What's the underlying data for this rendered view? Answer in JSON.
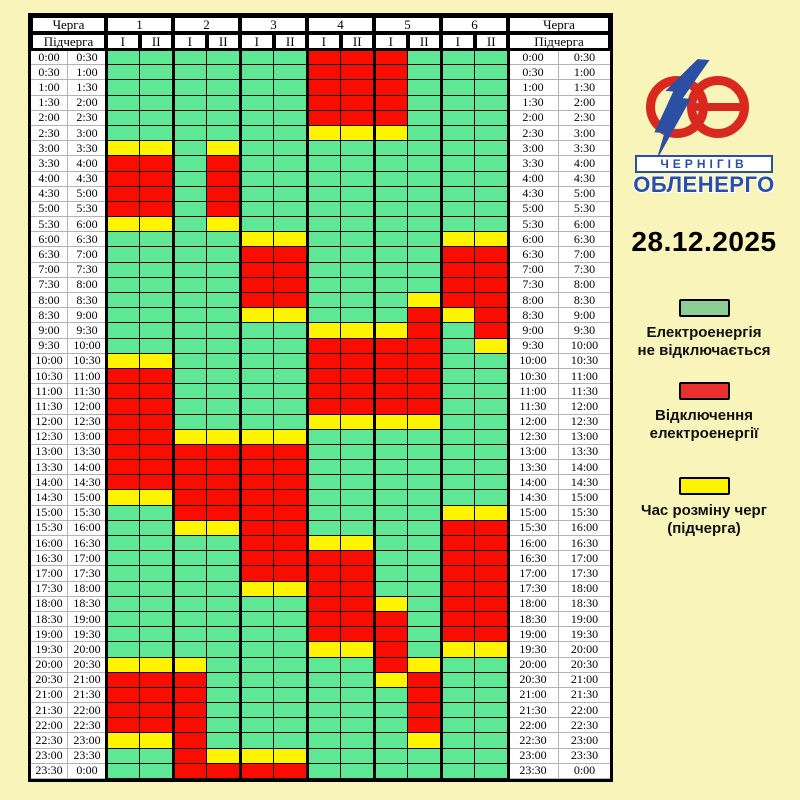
{
  "page": {
    "background": "#F9F4B9"
  },
  "table": {
    "header": {
      "cherha_label": "Черга",
      "pidcherha_label": "Підчерга",
      "queues": [
        "1",
        "2",
        "3",
        "4",
        "5",
        "6"
      ],
      "subqueues": [
        "I",
        "II"
      ]
    },
    "colors": {
      "G": "#5EE896",
      "R": "#F90D00",
      "Y": "#FEF400"
    }
  },
  "chart_data": {
    "type": "table",
    "date": "28.12.2025",
    "columns": [
      "1-I",
      "1-II",
      "2-I",
      "2-II",
      "3-I",
      "3-II",
      "4-I",
      "4-II",
      "5-I",
      "5-II",
      "6-I",
      "6-II"
    ],
    "rows": [
      [
        "0:00",
        "0:30"
      ],
      [
        "0:30",
        "1:00"
      ],
      [
        "1:00",
        "1:30"
      ],
      [
        "1:30",
        "2:00"
      ],
      [
        "2:00",
        "2:30"
      ],
      [
        "2:30",
        "3:00"
      ],
      [
        "3:00",
        "3:30"
      ],
      [
        "3:30",
        "4:00"
      ],
      [
        "4:00",
        "4:30"
      ],
      [
        "4:30",
        "5:00"
      ],
      [
        "5:00",
        "5:30"
      ],
      [
        "5:30",
        "6:00"
      ],
      [
        "6:00",
        "6:30"
      ],
      [
        "6:30",
        "7:00"
      ],
      [
        "7:00",
        "7:30"
      ],
      [
        "7:30",
        "8:00"
      ],
      [
        "8:00",
        "8:30"
      ],
      [
        "8:30",
        "9:00"
      ],
      [
        "9:00",
        "9:30"
      ],
      [
        "9:30",
        "10:00"
      ],
      [
        "10:00",
        "10:30"
      ],
      [
        "10:30",
        "11:00"
      ],
      [
        "11:00",
        "11:30"
      ],
      [
        "11:30",
        "12:00"
      ],
      [
        "12:00",
        "12:30"
      ],
      [
        "12:30",
        "13:00"
      ],
      [
        "13:00",
        "13:30"
      ],
      [
        "13:30",
        "14:00"
      ],
      [
        "14:00",
        "14:30"
      ],
      [
        "14:30",
        "15:00"
      ],
      [
        "15:00",
        "15:30"
      ],
      [
        "15:30",
        "16:00"
      ],
      [
        "16:00",
        "16:30"
      ],
      [
        "16:30",
        "17:00"
      ],
      [
        "17:00",
        "17:30"
      ],
      [
        "17:30",
        "18:00"
      ],
      [
        "18:00",
        "18:30"
      ],
      [
        "18:30",
        "19:00"
      ],
      [
        "19:00",
        "19:30"
      ],
      [
        "19:30",
        "20:00"
      ],
      [
        "20:00",
        "20:30"
      ],
      [
        "20:30",
        "21:00"
      ],
      [
        "21:00",
        "21:30"
      ],
      [
        "21:30",
        "22:00"
      ],
      [
        "22:00",
        "22:30"
      ],
      [
        "22:30",
        "23:00"
      ],
      [
        "23:00",
        "23:30"
      ],
      [
        "23:30",
        "0:00"
      ]
    ],
    "cell_states": [
      "GGGGGGRRRGGG",
      "GGGGGGRRRGGG",
      "GGGGGGRRRGGG",
      "GGGGGGRRRGGG",
      "GGGGGGRRRGGG",
      "GGGGGGYYYGGG",
      "YYGYGGGGGGGG",
      "RRGRGGGGGGGG",
      "RRGRGGGGGGGG",
      "RRGRGGGGGGGG",
      "RRGRGGGGGGGG",
      "YYGYGGGGGGGG",
      "GGGGYYGGGGYY",
      "GGGGRRGGGGRR",
      "GGGGRRGGGGRR",
      "GGGGRRGGGGRR",
      "GGGGRRGGGYRR",
      "GGGGYYGGGRYR",
      "GGGGGGYYYRGR",
      "GGGGGGRRRRGY",
      "YYGGGGRRRRGG",
      "RRGGGGRRRRGG",
      "RRGGGGRRRRGG",
      "RRGGGGRRRRGG",
      "RRGGGGYYYYGG",
      "RRYYYYGGGGGG",
      "RRRRRRGGGGGG",
      "RRRRRRGGGGGG",
      "RRRRRRGGGGGG",
      "YYRRRRGGGGGG",
      "GGRRRRGGGGYY",
      "GGYYRRGGGGRR",
      "GGGGRRYYGGRR",
      "GGGGRRRRGGRR",
      "GGGGRRRRGGRR",
      "GGGGYYRRGGRR",
      "GGGGGGRRYGRR",
      "GGGGGGRRRGRR",
      "GGGGGGRRRGRR",
      "GGGGGGYYRGYY",
      "YYYGGGGGRYGG",
      "RRRGGGGGYRGG",
      "RRRGGGGGGRGG",
      "RRRGGGGGGRGG",
      "RRRGGGGGGRGG",
      "YYRGGGGGGYGG",
      "GGRYYYGGGGGG",
      "GGRRRRGGGGGG"
    ],
    "state_legend": {
      "G": "Електроенергія не відключається",
      "R": "Відключення електроенергії",
      "Y": "Час розміну черг (підчерга)"
    }
  },
  "sidebar": {
    "logo": {
      "city": "ЧЕРНІГІВ",
      "company": "ОБЛЕНЕРГО",
      "red": "#D9291F",
      "blue": "#2B4FA2"
    },
    "date": "28.12.2025",
    "legend": [
      {
        "color": "#8FCD96",
        "label": "Електроенергія\nне відключається"
      },
      {
        "color": "#E8312E",
        "label": "Відключення\nелектроенергії"
      },
      {
        "color": "#FCF403",
        "label": "Час розміну черг\n(підчерга)"
      }
    ]
  }
}
